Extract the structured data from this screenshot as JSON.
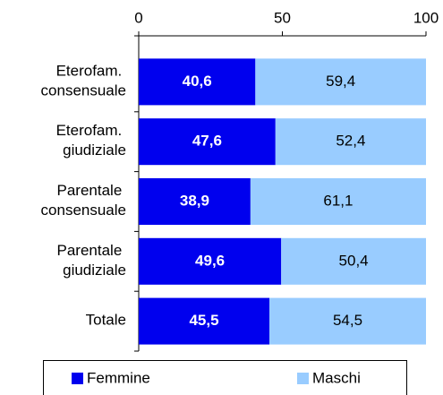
{
  "chart_data": {
    "type": "stacked-bar-horizontal",
    "categories": [
      "Eterofam. consensuale",
      "Eterofam. giudiziale",
      "Parentale consensuale",
      "Parentale giudiziale",
      "Totale"
    ],
    "series": [
      {
        "name": "Femmine",
        "color": "#0000ee",
        "values": [
          40.6,
          47.6,
          38.9,
          49.6,
          45.5
        ],
        "value_labels": [
          "40,6",
          "47,6",
          "38,9",
          "49,6",
          "45,5"
        ]
      },
      {
        "name": "Maschi",
        "color": "#99ccff",
        "values": [
          59.4,
          52.4,
          61.1,
          50.4,
          54.5
        ],
        "value_labels": [
          "59,4",
          "52,4",
          "61,1",
          "50,4",
          "54,5"
        ]
      }
    ],
    "xlim": [
      0,
      100
    ],
    "xticks": [
      0,
      50,
      100
    ],
    "legend": "bottom"
  }
}
